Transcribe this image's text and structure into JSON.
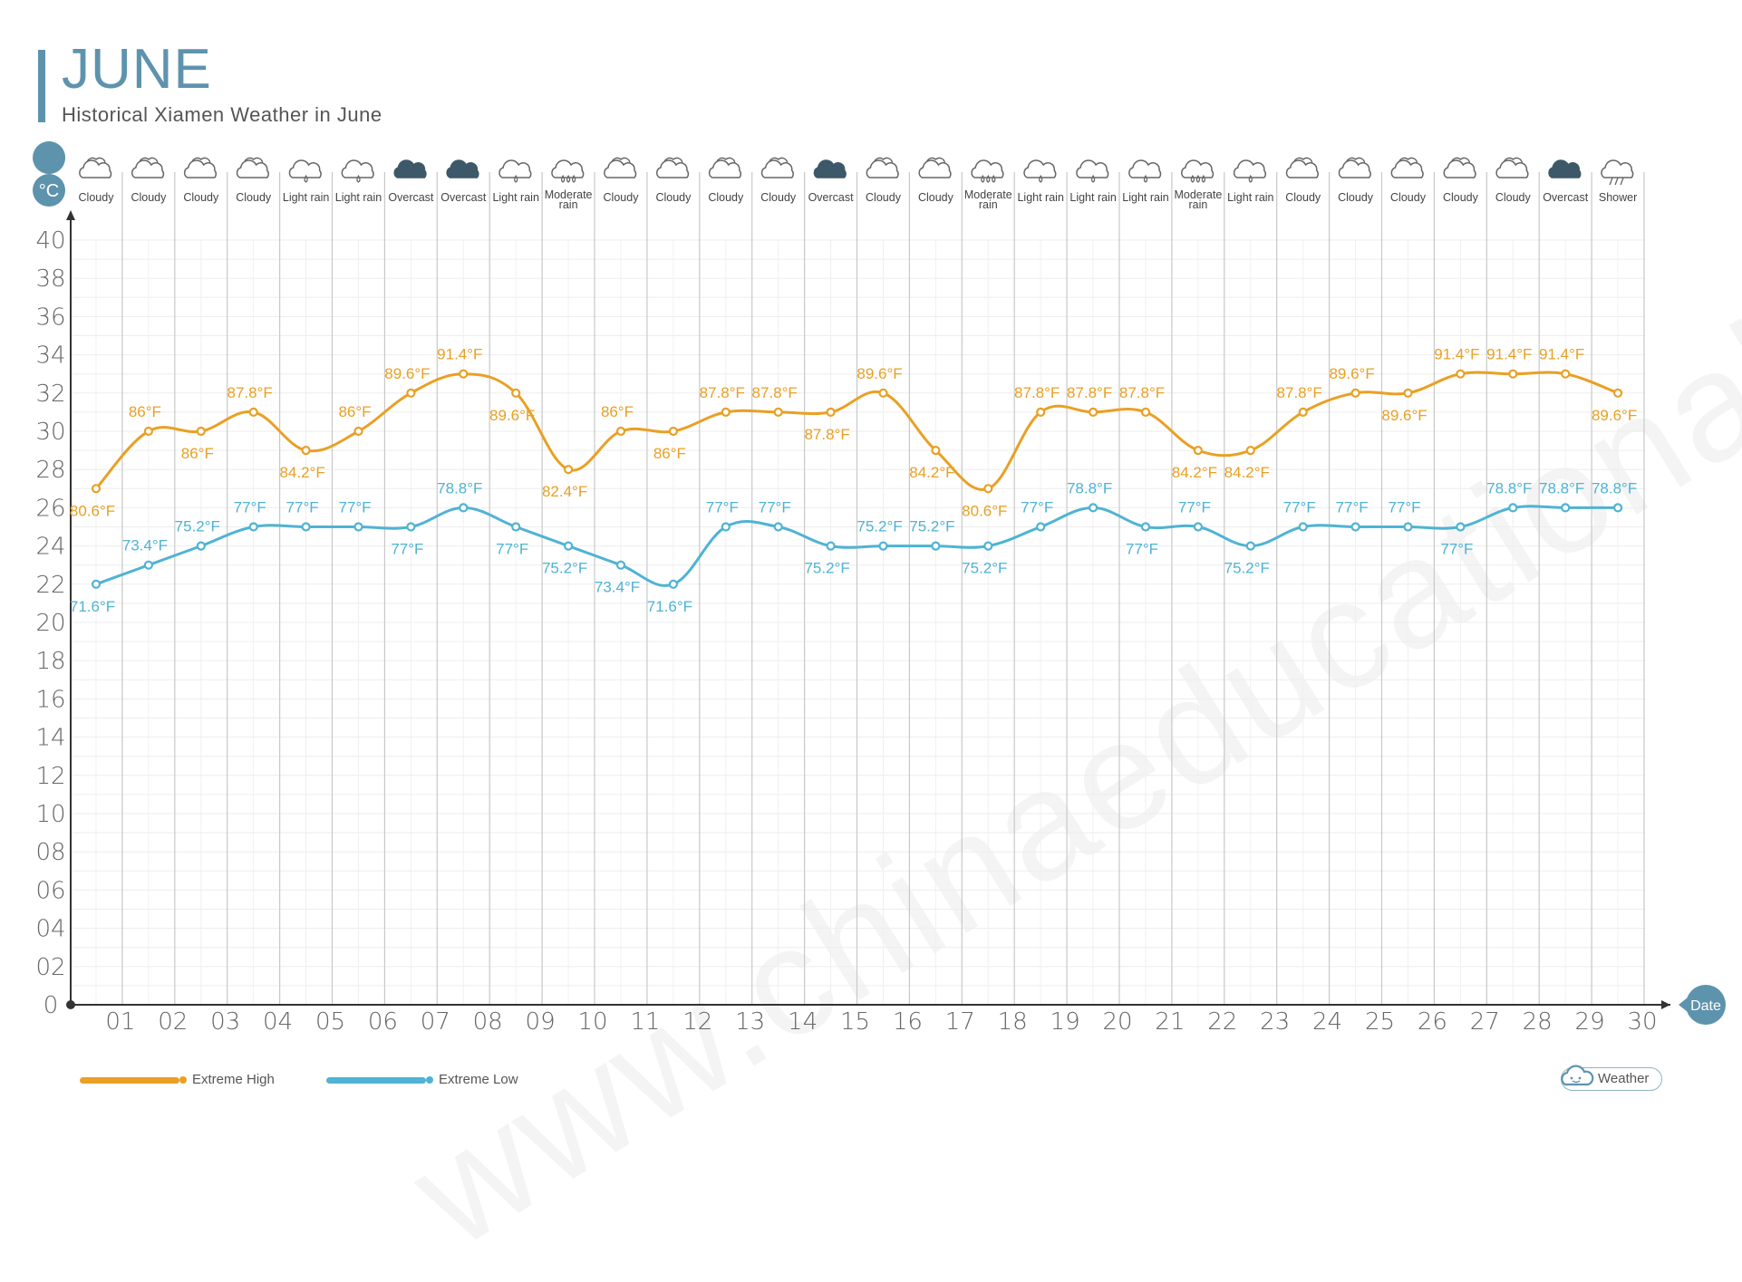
{
  "header": {
    "month": "JUNE",
    "subtitle": "Historical Xiamen Weather in June"
  },
  "axis": {
    "y_unit": "°C",
    "x_unit": "Date"
  },
  "legend": {
    "high_label": "Extreme High",
    "low_label": "Extreme Low",
    "weather_label": "Weather"
  },
  "colors": {
    "high": "#e9a024",
    "low": "#4fb3d4",
    "accent": "#5e93ad"
  },
  "watermark": "www.chinaeducationaltours.com",
  "chart_data": {
    "type": "line",
    "title": "JUNE",
    "subtitle": "Historical Xiamen Weather in June",
    "xlabel": "Date",
    "ylabel": "°C",
    "ylim": [
      0,
      40
    ],
    "y_ticks": [
      "0",
      "02",
      "04",
      "06",
      "08",
      "10",
      "12",
      "14",
      "16",
      "18",
      "20",
      "22",
      "24",
      "26",
      "28",
      "30",
      "32",
      "34",
      "36",
      "38",
      "40"
    ],
    "x_ticks": [
      "01",
      "02",
      "03",
      "04",
      "05",
      "06",
      "07",
      "08",
      "09",
      "10",
      "11",
      "12",
      "13",
      "14",
      "15",
      "16",
      "17",
      "18",
      "19",
      "20",
      "21",
      "22",
      "23",
      "24",
      "25",
      "26",
      "27",
      "28",
      "29",
      "30"
    ],
    "grid": true,
    "legend_position": "bottom-left",
    "x": [
      1,
      2,
      3,
      4,
      5,
      6,
      7,
      8,
      9,
      10,
      11,
      12,
      13,
      14,
      15,
      16,
      17,
      18,
      19,
      20,
      21,
      22,
      23,
      24,
      25,
      26,
      27,
      28,
      29,
      30
    ],
    "weather": [
      "Cloudy",
      "Cloudy",
      "Cloudy",
      "Cloudy",
      "Light rain",
      "Light rain",
      "Overcast",
      "Overcast",
      "Light rain",
      "Moderate rain",
      "Cloudy",
      "Cloudy",
      "Cloudy",
      "Cloudy",
      "Overcast",
      "Cloudy",
      "Cloudy",
      "Moderate rain",
      "Light rain",
      "Light rain",
      "Light rain",
      "Moderate rain",
      "Light rain",
      "Cloudy",
      "Cloudy",
      "Cloudy",
      "Cloudy",
      "Cloudy",
      "Overcast",
      "Shower"
    ],
    "series": [
      {
        "name": "Extreme High",
        "values": [
          27,
          30,
          30,
          31,
          29,
          30,
          32,
          33,
          32,
          28,
          30,
          30,
          31,
          31,
          31,
          32,
          29,
          27,
          31,
          31,
          31,
          29,
          29,
          31,
          32,
          32,
          33,
          33,
          33,
          32
        ],
        "labels": [
          "80.6°F",
          "86°F",
          "86°F",
          "87.8°F",
          "84.2°F",
          "86°F",
          "89.6°F",
          "91.4°F",
          "89.6°F",
          "82.4°F",
          "86°F",
          "86°F",
          "87.8°F",
          "87.8°F",
          "87.8°F",
          "89.6°F",
          "84.2°F",
          "80.6°F",
          "87.8°F",
          "87.8°F",
          "87.8°F",
          "84.2°F",
          "84.2°F",
          "87.8°F",
          "89.6°F",
          "89.6°F",
          "91.4°F",
          "91.4°F",
          "91.4°F",
          "89.6°F"
        ]
      },
      {
        "name": "Extreme Low",
        "values": [
          22,
          23,
          24,
          25,
          25,
          25,
          25,
          26,
          25,
          24,
          23,
          22,
          25,
          25,
          24,
          24,
          24,
          24,
          25,
          26,
          25,
          25,
          24,
          25,
          25,
          25,
          25,
          26,
          26,
          26
        ],
        "labels": [
          "71.6°F",
          "73.4°F",
          "75.2°F",
          "77°F",
          "77°F",
          "77°F",
          "77°F",
          "78.8°F",
          "77°F",
          "75.2°F",
          "73.4°F",
          "71.6°F",
          "77°F",
          "77°F",
          "75.2°F",
          "75.2°F",
          "75.2°F",
          "75.2°F",
          "77°F",
          "78.8°F",
          "77°F",
          "77°F",
          "75.2°F",
          "77°F",
          "77°F",
          "77°F",
          "77°F",
          "78.8°F",
          "78.8°F",
          "78.8°F"
        ]
      }
    ]
  }
}
